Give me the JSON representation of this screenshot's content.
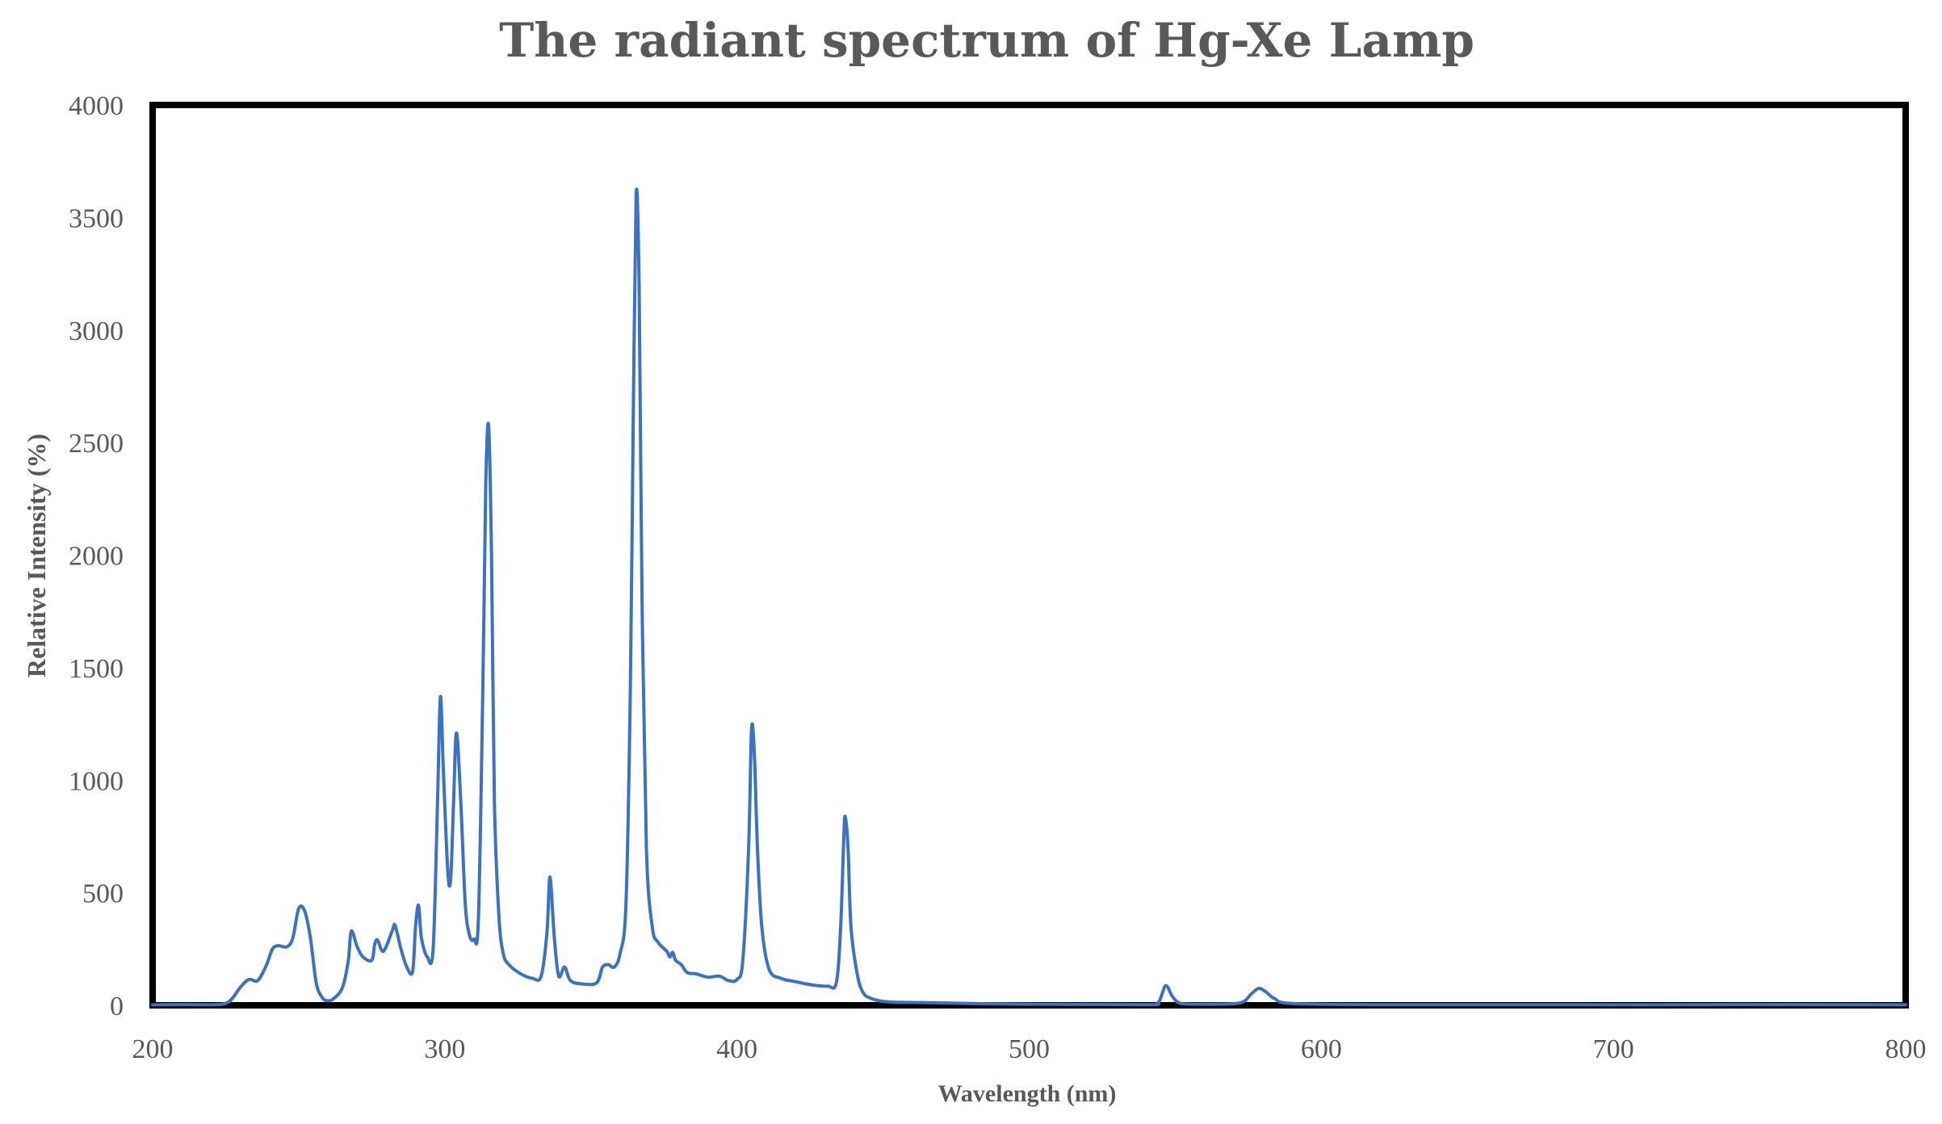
{
  "chart_data": {
    "type": "line",
    "title": "The radiant spectrum of Hg-Xe Lamp",
    "xlabel": "Wavelength (nm)",
    "ylabel": "Relative Intensity (%)",
    "xlim": [
      200,
      800
    ],
    "ylim": [
      0,
      4000
    ],
    "x_ticks": [
      "200",
      "300",
      "400",
      "500",
      "600",
      "700",
      "800"
    ],
    "y_ticks": [
      "0",
      "500",
      "1000",
      "1500",
      "2000",
      "2500",
      "3000",
      "3500",
      "4000"
    ],
    "grid": false,
    "legend": "none",
    "series": [
      {
        "color": "#3a72c4",
        "points": [
          [
            200,
            2
          ],
          [
            220,
            2
          ],
          [
            226,
            15
          ],
          [
            230,
            80
          ],
          [
            233,
            115
          ],
          [
            236,
            110
          ],
          [
            239,
            180
          ],
          [
            241,
            250
          ],
          [
            243,
            265
          ],
          [
            246,
            260
          ],
          [
            248,
            300
          ],
          [
            250,
            430
          ],
          [
            252,
            420
          ],
          [
            254,
            300
          ],
          [
            256,
            100
          ],
          [
            258,
            35
          ],
          [
            260,
            20
          ],
          [
            262,
            30
          ],
          [
            265,
            80
          ],
          [
            267,
            200
          ],
          [
            268,
            330
          ],
          [
            270,
            260
          ],
          [
            272,
            215
          ],
          [
            275,
            200
          ],
          [
            276,
            270
          ],
          [
            277,
            290
          ],
          [
            279,
            240
          ],
          [
            282,
            330
          ],
          [
            283,
            355
          ],
          [
            285,
            250
          ],
          [
            287,
            170
          ],
          [
            289,
            150
          ],
          [
            290,
            350
          ],
          [
            291,
            445
          ],
          [
            292,
            300
          ],
          [
            294,
            215
          ],
          [
            296,
            250
          ],
          [
            297.5,
            900
          ],
          [
            298.5,
            1370
          ],
          [
            299.5,
            1050
          ],
          [
            301,
            600
          ],
          [
            302,
            560
          ],
          [
            303,
            900
          ],
          [
            304,
            1210
          ],
          [
            305.5,
            900
          ],
          [
            307,
            450
          ],
          [
            308.5,
            310
          ],
          [
            310,
            295
          ],
          [
            311.5,
            380
          ],
          [
            313,
            1400
          ],
          [
            314,
            2300
          ],
          [
            315,
            2575
          ],
          [
            316,
            2000
          ],
          [
            317,
            900
          ],
          [
            318.5,
            400
          ],
          [
            320,
            230
          ],
          [
            322,
            180
          ],
          [
            326,
            140
          ],
          [
            330,
            120
          ],
          [
            333,
            130
          ],
          [
            335,
            330
          ],
          [
            336,
            570
          ],
          [
            337.5,
            300
          ],
          [
            339,
            130
          ],
          [
            341,
            170
          ],
          [
            343,
            110
          ],
          [
            347,
            95
          ],
          [
            352,
            100
          ],
          [
            354,
            170
          ],
          [
            356,
            180
          ],
          [
            358,
            170
          ],
          [
            360,
            230
          ],
          [
            362,
            450
          ],
          [
            363.5,
            1400
          ],
          [
            364.5,
            2600
          ],
          [
            365.5,
            3600
          ],
          [
            366.5,
            3200
          ],
          [
            367.5,
            1800
          ],
          [
            369,
            700
          ],
          [
            371,
            350
          ],
          [
            373,
            280
          ],
          [
            376,
            240
          ],
          [
            377,
            215
          ],
          [
            378,
            235
          ],
          [
            379,
            200
          ],
          [
            381,
            180
          ],
          [
            383,
            145
          ],
          [
            386,
            140
          ],
          [
            390,
            125
          ],
          [
            394,
            130
          ],
          [
            397,
            110
          ],
          [
            400,
            115
          ],
          [
            402,
            200
          ],
          [
            404,
            700
          ],
          [
            405,
            1230
          ],
          [
            406,
            1100
          ],
          [
            407,
            700
          ],
          [
            408.5,
            350
          ],
          [
            411,
            160
          ],
          [
            415,
            120
          ],
          [
            420,
            105
          ],
          [
            426,
            90
          ],
          [
            431,
            85
          ],
          [
            434,
            100
          ],
          [
            435.5,
            350
          ],
          [
            436.5,
            720
          ],
          [
            437,
            840
          ],
          [
            438,
            700
          ],
          [
            439,
            350
          ],
          [
            441,
            150
          ],
          [
            443,
            60
          ],
          [
            446,
            30
          ],
          [
            452,
            15
          ],
          [
            465,
            12
          ],
          [
            480,
            8
          ],
          [
            500,
            5
          ],
          [
            540,
            3
          ],
          [
            544,
            10
          ],
          [
            545.5,
            50
          ],
          [
            546.5,
            85
          ],
          [
            547.5,
            80
          ],
          [
            549,
            40
          ],
          [
            552,
            8
          ],
          [
            560,
            5
          ],
          [
            572,
            10
          ],
          [
            576,
            50
          ],
          [
            578.5,
            75
          ],
          [
            581,
            60
          ],
          [
            584,
            30
          ],
          [
            590,
            8
          ],
          [
            620,
            3
          ],
          [
            700,
            2
          ],
          [
            800,
            2
          ]
        ]
      }
    ]
  }
}
